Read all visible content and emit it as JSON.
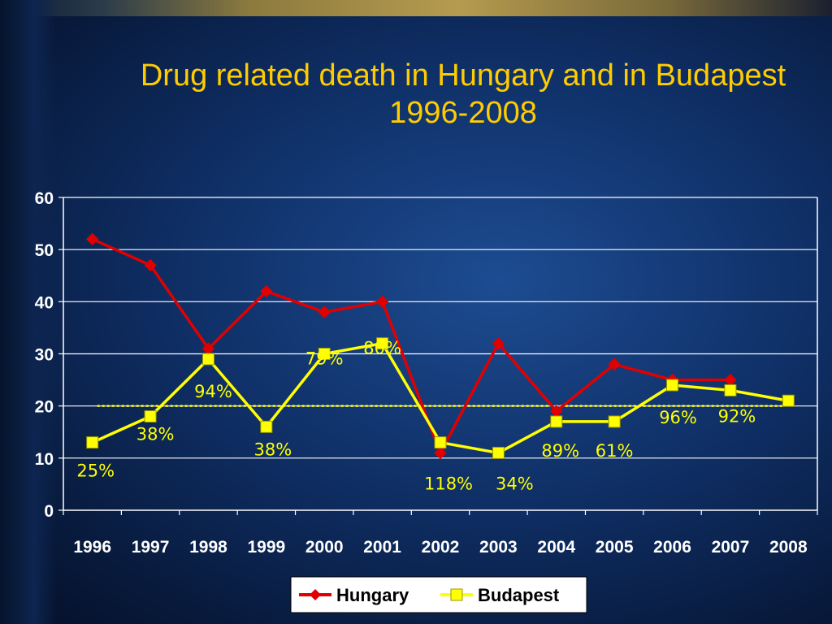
{
  "title": "Drug related death in Hungary and in Budapest 1996-2008",
  "chart_data": {
    "type": "line",
    "title": "Drug related death in Hungary and in Budapest 1996-2008",
    "categories": [
      "1996",
      "1997",
      "1998",
      "1999",
      "2000",
      "2001",
      "2002",
      "2003",
      "2004",
      "2005",
      "2006",
      "2007",
      "2008"
    ],
    "ylim": [
      0,
      60
    ],
    "yticks": [
      "0",
      "10",
      "20",
      "30",
      "40",
      "50",
      "60"
    ],
    "grid": true,
    "legend_position": "bottom",
    "reference_line": 20,
    "series": [
      {
        "name": "Hungary",
        "color": "#e00000",
        "marker": "diamond",
        "values": [
          52,
          47,
          31,
          42,
          38,
          40,
          11,
          32,
          19,
          28,
          25,
          25,
          null
        ]
      },
      {
        "name": "Budapest",
        "color": "#ffff00",
        "marker": "square",
        "values": [
          13,
          18,
          29,
          16,
          30,
          32,
          13,
          11,
          17,
          17,
          24,
          23,
          21
        ]
      }
    ],
    "annotations": [
      {
        "text": "25%",
        "x": "1996",
        "y": 13
      },
      {
        "text": "38%",
        "x": "1997",
        "y": 18
      },
      {
        "text": "94%",
        "x": "1998",
        "y": 29
      },
      {
        "text": "38%",
        "x": "1999",
        "y": 16
      },
      {
        "text": "79%",
        "x": "2000",
        "y": 30
      },
      {
        "text": "80%",
        "x": "2001",
        "y": 32
      },
      {
        "text": "118%",
        "x": "2002",
        "y": 13
      },
      {
        "text": "34%",
        "x": "2003",
        "y": 11
      },
      {
        "text": "89%",
        "x": "2004",
        "y": 17
      },
      {
        "text": "61%",
        "x": "2005",
        "y": 17
      },
      {
        "text": "96%",
        "x": "2006",
        "y": 24
      },
      {
        "text": "92%",
        "x": "2007",
        "y": 23
      }
    ]
  },
  "colors": {
    "title": "#ffcc00",
    "axis_text": "#ffffff",
    "annotation": "#ffff00",
    "grid": "#ffffff",
    "reference_line": "#ffff00"
  }
}
